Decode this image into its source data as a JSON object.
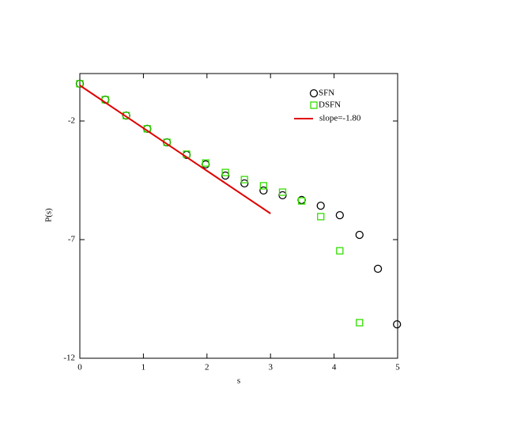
{
  "chart_data": {
    "type": "scatter",
    "xlabel": "s",
    "ylabel": "P(s)",
    "xlim": [
      0,
      5
    ],
    "ylim": [
      -12,
      0
    ],
    "xticks": [
      0,
      1,
      2,
      3,
      4,
      5
    ],
    "yticks": [
      -2,
      -7,
      -12
    ],
    "legend": "upper right",
    "series": [
      {
        "name": "SFN",
        "color": "#000000",
        "marker": "circle",
        "x": [
          0,
          0.4,
          0.73,
          1.06,
          1.37,
          1.68,
          1.98,
          2.29,
          2.59,
          2.89,
          3.19,
          3.49,
          3.79,
          4.09,
          4.4,
          4.69,
          4.99
        ],
        "values": [
          -0.43,
          -1.1,
          -1.77,
          -2.33,
          -2.9,
          -3.43,
          -3.83,
          -4.3,
          -4.63,
          -4.93,
          -5.13,
          -5.33,
          -5.57,
          -5.97,
          -6.8,
          -8.23,
          -10.57
        ]
      },
      {
        "name": "DSFN",
        "color": "#33dd00",
        "marker": "square",
        "x": [
          0,
          0.4,
          0.73,
          1.06,
          1.37,
          1.68,
          1.98,
          2.29,
          2.59,
          2.89,
          3.19,
          3.49,
          3.79,
          4.09,
          4.4
        ],
        "values": [
          -0.43,
          -1.1,
          -1.77,
          -2.33,
          -2.9,
          -3.4,
          -3.77,
          -4.17,
          -4.47,
          -4.73,
          -5.0,
          -5.37,
          -6.03,
          -7.47,
          -10.5
        ]
      },
      {
        "name": "slope=-1.80",
        "color": "#e00000",
        "marker": "line",
        "x": [
          0,
          3
        ],
        "values": [
          -0.5,
          -5.9
        ]
      }
    ]
  }
}
